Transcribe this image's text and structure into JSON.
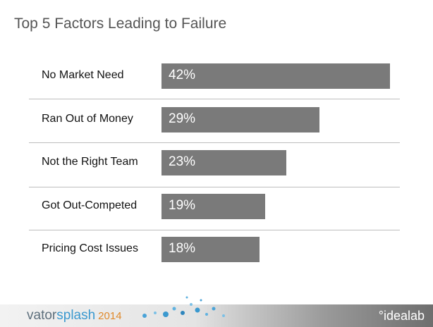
{
  "title": "Top 5 Factors Leading to Failure",
  "chart_data": {
    "type": "bar",
    "orientation": "horizontal",
    "categories": [
      "No Market Need",
      "Ran Out of Money",
      "Not the Right Team",
      "Got Out-Competed",
      "Pricing Cost Issues"
    ],
    "values": [
      42,
      29,
      23,
      19,
      18
    ],
    "value_labels": [
      "42%",
      "29%",
      "23%",
      "19%",
      "18%"
    ],
    "unit": "%",
    "bar_color": "#7a7a7a",
    "grid": false
  },
  "footer": {
    "brand_part1": "vator",
    "brand_part2": "splash",
    "brand_year": "2014",
    "partner": "°idealab"
  }
}
